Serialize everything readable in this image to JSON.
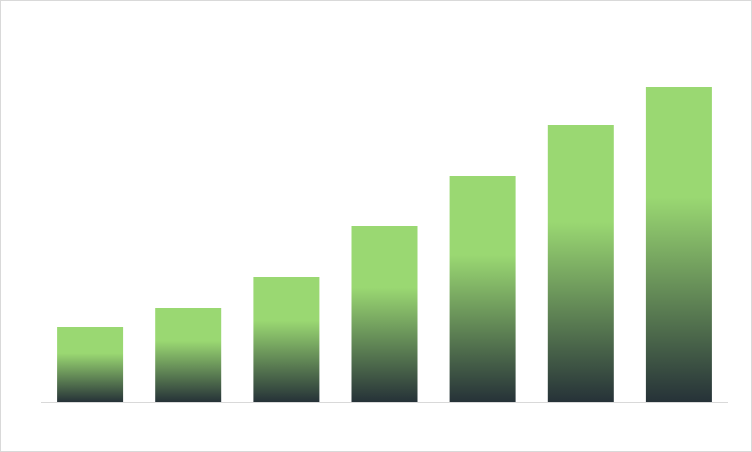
{
  "chart_data": {
    "type": "bar",
    "title": "",
    "xlabel": "",
    "ylabel": "",
    "categories": [
      "",
      "",
      "",
      "",
      "",
      "",
      ""
    ],
    "values": [
      75,
      94,
      125,
      176,
      226,
      277,
      315
    ],
    "ylim": [
      0,
      350
    ],
    "grid": false,
    "legend": "none",
    "colors": {
      "bar_top": "#9ad872",
      "bar_bottom": "#263238",
      "axis": "#d9d9d9",
      "border": "#d9d9d9"
    }
  }
}
